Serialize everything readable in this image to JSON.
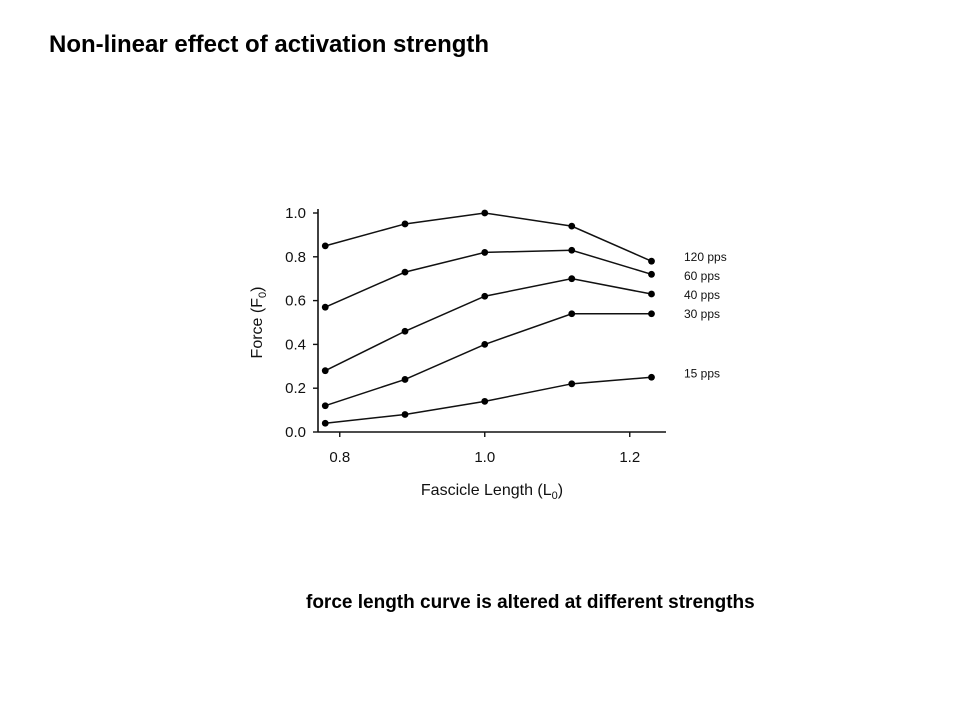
{
  "slide": {
    "title": "Non-linear effect of activation strength",
    "caption": "force length curve is altered at different strengths"
  },
  "chart_data": {
    "type": "line",
    "xlabel": "Fascicle Length (L",
    "xlabel_sub": "0",
    "xlabel_end": ")",
    "ylabel": "Force (F",
    "ylabel_sub": "0",
    "ylabel_end": ")",
    "xlim": [
      0.77,
      1.25
    ],
    "ylim": [
      0.0,
      1.0
    ],
    "xticks": [
      0.8,
      1.0,
      1.2
    ],
    "xtick_labels": [
      "0.8",
      "1.0",
      "1.2"
    ],
    "yticks": [
      0.0,
      0.2,
      0.4,
      0.6,
      0.8,
      1.0
    ],
    "ytick_labels": [
      "0.0",
      "0.2",
      "0.4",
      "0.6",
      "0.8",
      "1.0"
    ],
    "grid": false,
    "x": [
      0.78,
      0.89,
      1.0,
      1.12,
      1.23
    ],
    "series": [
      {
        "name": "120 pps",
        "values": [
          0.85,
          0.95,
          1.0,
          0.94,
          0.78
        ]
      },
      {
        "name": "60 pps",
        "values": [
          0.57,
          0.73,
          0.82,
          0.83,
          0.72
        ]
      },
      {
        "name": "40 pps",
        "values": [
          0.28,
          0.46,
          0.62,
          0.7,
          0.63
        ]
      },
      {
        "name": "30 pps",
        "values": [
          0.12,
          0.24,
          0.4,
          0.54,
          0.54
        ]
      },
      {
        "name": "15 pps",
        "values": [
          0.04,
          0.08,
          0.14,
          0.22,
          0.25
        ]
      }
    ]
  }
}
